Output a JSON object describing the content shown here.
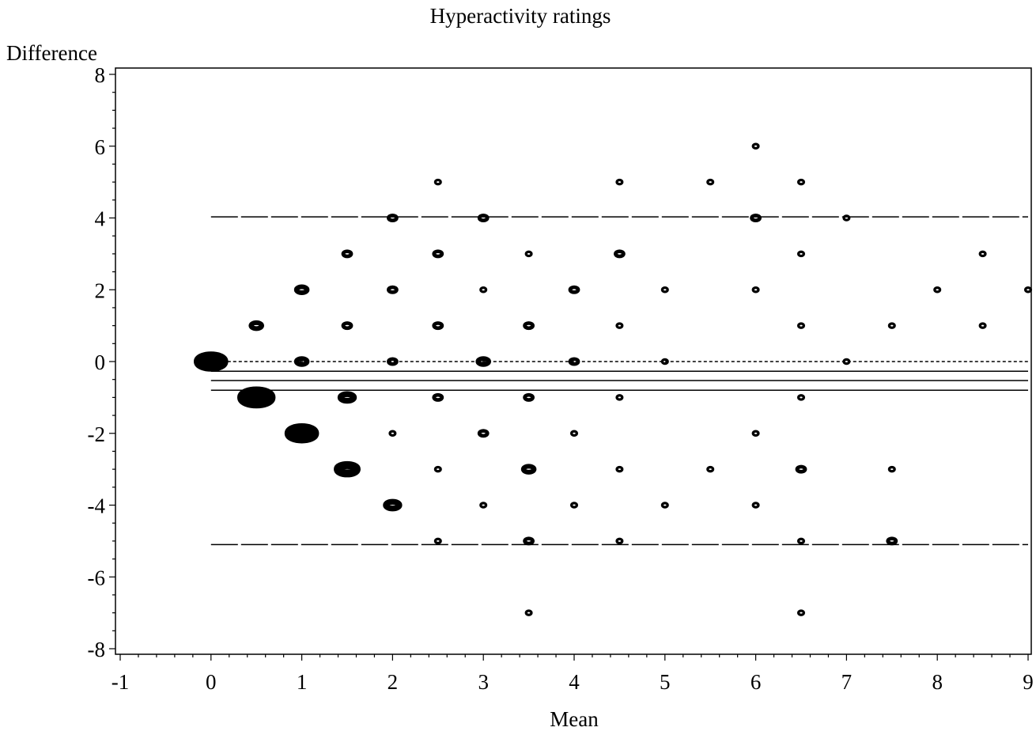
{
  "chart_data": {
    "type": "scatter",
    "title": "Hyperactivity ratings",
    "xlabel": "Mean",
    "ylabel": "Difference",
    "xlim": [
      -1,
      9
    ],
    "ylim": [
      -8,
      8
    ],
    "x_ticks": [
      "-1",
      "0",
      "1",
      "2",
      "3",
      "4",
      "5",
      "6",
      "7",
      "8",
      "9"
    ],
    "y_ticks": [
      "-8",
      "-6",
      "-4",
      "-2",
      "0",
      "2",
      "4",
      "6",
      "8"
    ],
    "grid": false,
    "reference_lines": [
      {
        "style": "long-dash",
        "y": 4.03,
        "x_from": 0,
        "x_to": 9
      },
      {
        "style": "dotted",
        "y": 0,
        "x_from": 0,
        "x_to": 9
      },
      {
        "style": "solid",
        "y": -0.27,
        "x_from": 0,
        "x_to": 9
      },
      {
        "style": "solid",
        "y": -0.53,
        "x_from": 0,
        "x_to": 9
      },
      {
        "style": "solid",
        "y": -0.8,
        "x_from": 0,
        "x_to": 9
      },
      {
        "style": "long-dash",
        "y": -5.1,
        "x_from": 0,
        "x_to": 9
      }
    ],
    "points": [
      {
        "x": 0,
        "y": 0,
        "size": 8
      },
      {
        "x": 0.5,
        "y": 1,
        "size": 3
      },
      {
        "x": 0.5,
        "y": -1,
        "size": 9
      },
      {
        "x": 1,
        "y": 2,
        "size": 3
      },
      {
        "x": 1,
        "y": 0,
        "size": 3
      },
      {
        "x": 1,
        "y": -2,
        "size": 8
      },
      {
        "x": 1.5,
        "y": 3,
        "size": 2
      },
      {
        "x": 1.5,
        "y": 1,
        "size": 2
      },
      {
        "x": 1.5,
        "y": -1,
        "size": 4
      },
      {
        "x": 1.5,
        "y": -3,
        "size": 6
      },
      {
        "x": 2,
        "y": 4,
        "size": 2
      },
      {
        "x": 2,
        "y": 2,
        "size": 2
      },
      {
        "x": 2,
        "y": 0,
        "size": 2
      },
      {
        "x": 2,
        "y": -2,
        "size": 1
      },
      {
        "x": 2,
        "y": -4,
        "size": 4
      },
      {
        "x": 2.5,
        "y": 5,
        "size": 1
      },
      {
        "x": 2.5,
        "y": 3,
        "size": 2
      },
      {
        "x": 2.5,
        "y": 1,
        "size": 2
      },
      {
        "x": 2.5,
        "y": -1,
        "size": 2
      },
      {
        "x": 2.5,
        "y": -3,
        "size": 1
      },
      {
        "x": 2.5,
        "y": -5,
        "size": 1
      },
      {
        "x": 3,
        "y": 4,
        "size": 2
      },
      {
        "x": 3,
        "y": 2,
        "size": 1
      },
      {
        "x": 3,
        "y": 0,
        "size": 3
      },
      {
        "x": 3,
        "y": -2,
        "size": 2
      },
      {
        "x": 3,
        "y": -4,
        "size": 1
      },
      {
        "x": 3.5,
        "y": 3,
        "size": 1
      },
      {
        "x": 3.5,
        "y": 1,
        "size": 2
      },
      {
        "x": 3.5,
        "y": -1,
        "size": 2
      },
      {
        "x": 3.5,
        "y": -3,
        "size": 3
      },
      {
        "x": 3.5,
        "y": -5,
        "size": 2
      },
      {
        "x": 3.5,
        "y": -7,
        "size": 1
      },
      {
        "x": 4,
        "y": 2,
        "size": 2
      },
      {
        "x": 4,
        "y": 0,
        "size": 2
      },
      {
        "x": 4,
        "y": -2,
        "size": 1
      },
      {
        "x": 4,
        "y": -4,
        "size": 1
      },
      {
        "x": 4.5,
        "y": 5,
        "size": 1
      },
      {
        "x": 4.5,
        "y": 3,
        "size": 2
      },
      {
        "x": 4.5,
        "y": 1,
        "size": 1
      },
      {
        "x": 4.5,
        "y": -1,
        "size": 1
      },
      {
        "x": 4.5,
        "y": -3,
        "size": 1
      },
      {
        "x": 4.5,
        "y": -5,
        "size": 1
      },
      {
        "x": 5,
        "y": 2,
        "size": 1
      },
      {
        "x": 5,
        "y": 0,
        "size": 1
      },
      {
        "x": 5,
        "y": -4,
        "size": 1
      },
      {
        "x": 5.5,
        "y": 5,
        "size": 1
      },
      {
        "x": 5.5,
        "y": -3,
        "size": 1
      },
      {
        "x": 6,
        "y": 6,
        "size": 1
      },
      {
        "x": 6,
        "y": 4,
        "size": 2
      },
      {
        "x": 6,
        "y": 2,
        "size": 1
      },
      {
        "x": 6,
        "y": -2,
        "size": 1
      },
      {
        "x": 6,
        "y": -4,
        "size": 1
      },
      {
        "x": 6.5,
        "y": 5,
        "size": 1
      },
      {
        "x": 6.5,
        "y": 3,
        "size": 1
      },
      {
        "x": 6.5,
        "y": 1,
        "size": 1
      },
      {
        "x": 6.5,
        "y": -1,
        "size": 1
      },
      {
        "x": 6.5,
        "y": -3,
        "size": 2
      },
      {
        "x": 6.5,
        "y": -5,
        "size": 1
      },
      {
        "x": 6.5,
        "y": -7,
        "size": 1
      },
      {
        "x": 7,
        "y": 4,
        "size": 1
      },
      {
        "x": 7,
        "y": 0,
        "size": 1
      },
      {
        "x": 7.5,
        "y": 1,
        "size": 1
      },
      {
        "x": 7.5,
        "y": -3,
        "size": 1
      },
      {
        "x": 7.5,
        "y": -5,
        "size": 2
      },
      {
        "x": 8,
        "y": 2,
        "size": 1
      },
      {
        "x": 8.5,
        "y": 3,
        "size": 1
      },
      {
        "x": 8.5,
        "y": 1,
        "size": 1
      },
      {
        "x": 9,
        "y": 2,
        "size": 1
      }
    ]
  }
}
